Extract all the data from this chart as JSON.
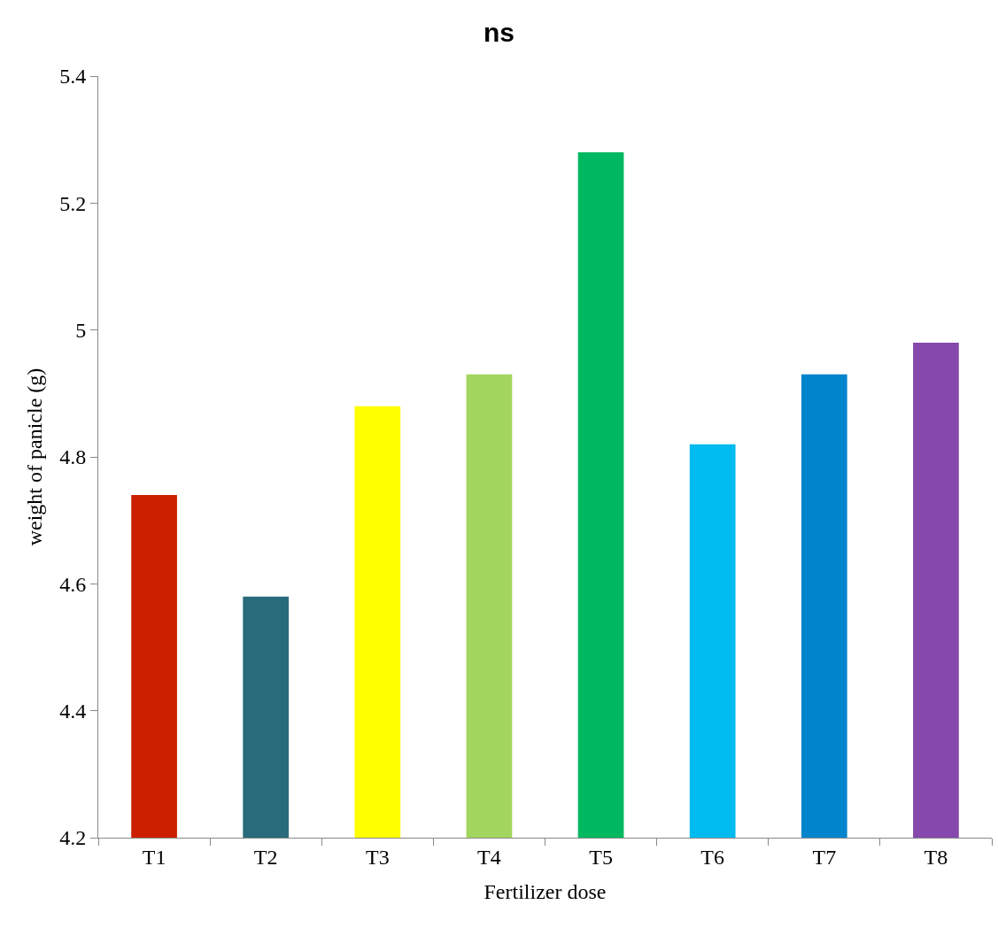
{
  "chart_data": {
    "type": "bar",
    "title": "ns",
    "xlabel": "Fertilizer dose",
    "ylabel": "weight of panicle (g)",
    "categories": [
      "T1",
      "T2",
      "T3",
      "T4",
      "T5",
      "T6",
      "T7",
      "T8"
    ],
    "values": [
      4.74,
      4.58,
      4.88,
      4.93,
      5.28,
      4.82,
      4.93,
      4.98
    ],
    "colors": [
      "#cc1f00",
      "#286b7a",
      "#ffff00",
      "#a3d65e",
      "#00b85f",
      "#00bbf0",
      "#0085cc",
      "#8648ac"
    ],
    "ylim": [
      4.2,
      5.4
    ],
    "yticks": [
      4.2,
      4.4,
      4.6,
      4.8,
      5,
      5.2,
      5.4
    ],
    "grid": false
  }
}
